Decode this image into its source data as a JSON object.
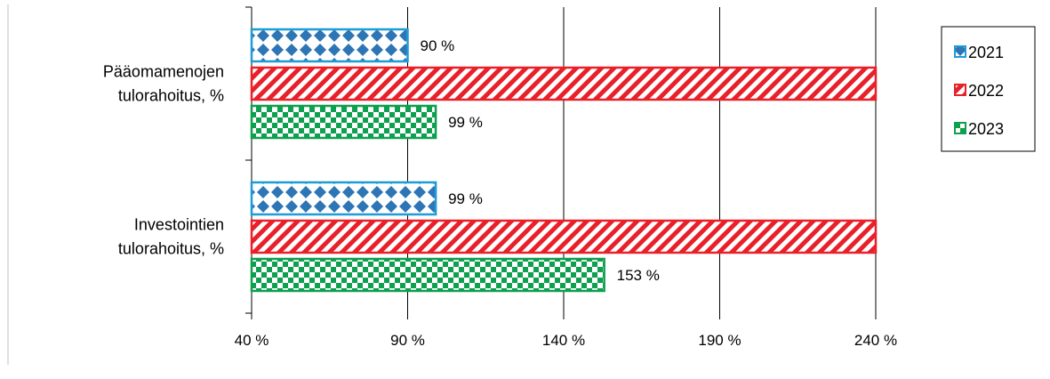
{
  "chart_data": {
    "type": "bar",
    "orientation": "horizontal",
    "categories": [
      "Pääomamenojen tulorahoitus, %",
      "Investointien tulorahoitus, %"
    ],
    "category_lines": [
      [
        "Pääomamenojen",
        "tulorahoitus, %"
      ],
      [
        "Investointien",
        "tulorahoitus, %"
      ]
    ],
    "series": [
      {
        "name": "2021",
        "values": [
          90,
          99
        ],
        "labels": [
          "90 %",
          "99 %"
        ],
        "color": "#1f9bd7",
        "fill_color": "#2e75b6",
        "pattern": "diamonds"
      },
      {
        "name": "2022",
        "values": [
          240,
          240
        ],
        "labels": [
          "",
          ""
        ],
        "color": "#e8202a",
        "pattern": "diagonal-stripes"
      },
      {
        "name": "2023",
        "values": [
          99,
          153
        ],
        "labels": [
          "99 %",
          "153 %"
        ],
        "color": "#0e9f4f",
        "pattern": "checkerboard"
      }
    ],
    "xlim": [
      40,
      240
    ],
    "x_ticks": [
      40,
      90,
      140,
      190,
      240
    ],
    "x_tick_labels": [
      "40 %",
      "90 %",
      "140 %",
      "190 %",
      "240 %"
    ],
    "grid": true,
    "legend_position": "top-right",
    "title": "",
    "xlabel": "",
    "ylabel": ""
  }
}
